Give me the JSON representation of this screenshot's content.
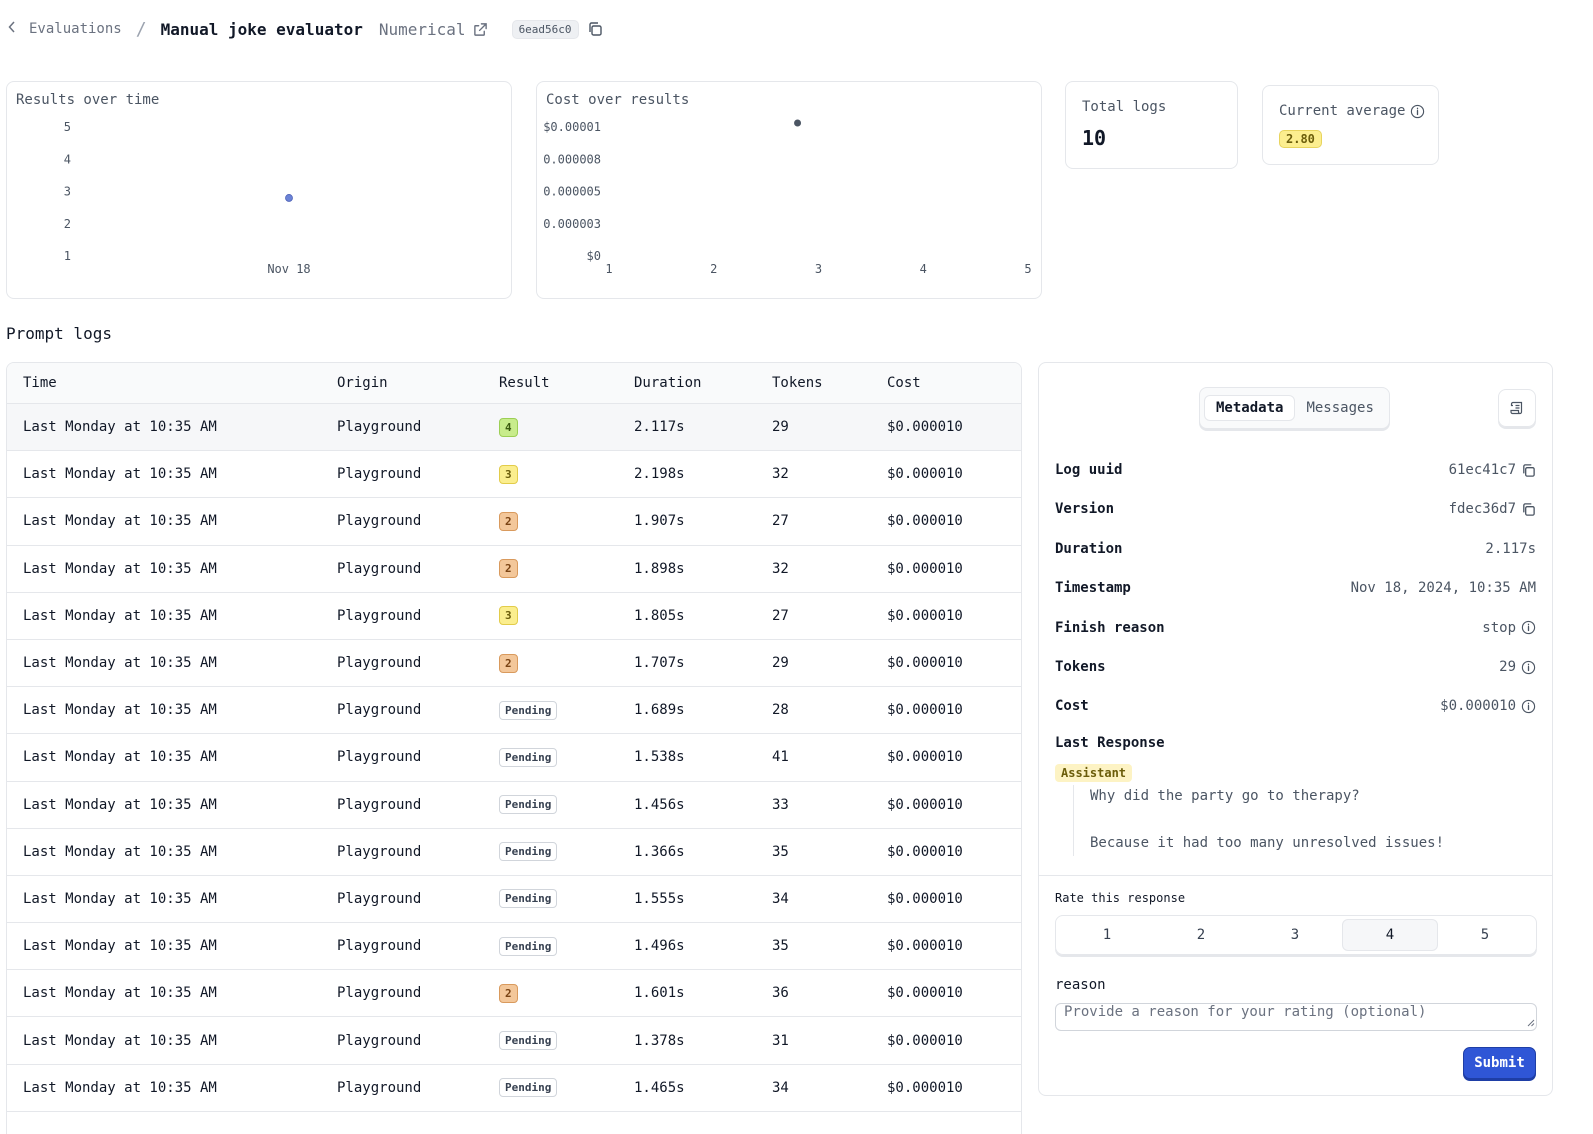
{
  "header": {
    "back_label": "Evaluations",
    "separator": "/",
    "title": "Manual joke evaluator",
    "type_label": "Numerical",
    "commit_hash": "6ead56c0"
  },
  "charts": {
    "results": {
      "title": "Results over time"
    },
    "cost": {
      "title": "Cost over results"
    }
  },
  "chart_data": [
    {
      "type": "scatter",
      "title": "Results over time",
      "y_ticks": [
        "1",
        "2",
        "3",
        "4",
        "5"
      ],
      "x_ticks": [
        "Nov 18"
      ],
      "ylim": [
        1,
        5
      ],
      "points": [
        {
          "x": "Nov 18",
          "y": 2.8
        }
      ],
      "color": "#6b83d6"
    },
    {
      "type": "scatter",
      "title": "Cost over results",
      "y_ticks": [
        "$0",
        "0.000003",
        "0.000005",
        "0.000008",
        "$0.00001"
      ],
      "y_tick_values": [
        0,
        2.5e-06,
        5e-06,
        7.5e-06,
        1e-05
      ],
      "x_ticks": [
        "1",
        "2",
        "3",
        "4",
        "5"
      ],
      "xlim": [
        1,
        5
      ],
      "ylim": [
        0,
        1e-05
      ],
      "points": [
        {
          "x": 2.8,
          "y": 1e-05
        }
      ],
      "color": "#4b5563"
    }
  ],
  "stats": {
    "total_logs_label": "Total logs",
    "total_logs_value": "10",
    "current_average_label": "Current average",
    "current_average_value": "2.80"
  },
  "section_title": "Prompt logs",
  "table": {
    "columns": [
      "Time",
      "Origin",
      "Result",
      "Duration",
      "Tokens",
      "Cost"
    ],
    "rows": [
      {
        "time": "Last Monday at 10:35 AM",
        "origin": "Playground",
        "result": "4",
        "duration": "2.117s",
        "tokens": "29",
        "cost": "$0.000010"
      },
      {
        "time": "Last Monday at 10:35 AM",
        "origin": "Playground",
        "result": "3",
        "duration": "2.198s",
        "tokens": "32",
        "cost": "$0.000010"
      },
      {
        "time": "Last Monday at 10:35 AM",
        "origin": "Playground",
        "result": "2",
        "duration": "1.907s",
        "tokens": "27",
        "cost": "$0.000010"
      },
      {
        "time": "Last Monday at 10:35 AM",
        "origin": "Playground",
        "result": "2",
        "duration": "1.898s",
        "tokens": "32",
        "cost": "$0.000010"
      },
      {
        "time": "Last Monday at 10:35 AM",
        "origin": "Playground",
        "result": "3",
        "duration": "1.805s",
        "tokens": "27",
        "cost": "$0.000010"
      },
      {
        "time": "Last Monday at 10:35 AM",
        "origin": "Playground",
        "result": "2",
        "duration": "1.707s",
        "tokens": "29",
        "cost": "$0.000010"
      },
      {
        "time": "Last Monday at 10:35 AM",
        "origin": "Playground",
        "result": "Pending",
        "duration": "1.689s",
        "tokens": "28",
        "cost": "$0.000010"
      },
      {
        "time": "Last Monday at 10:35 AM",
        "origin": "Playground",
        "result": "Pending",
        "duration": "1.538s",
        "tokens": "41",
        "cost": "$0.000010"
      },
      {
        "time": "Last Monday at 10:35 AM",
        "origin": "Playground",
        "result": "Pending",
        "duration": "1.456s",
        "tokens": "33",
        "cost": "$0.000010"
      },
      {
        "time": "Last Monday at 10:35 AM",
        "origin": "Playground",
        "result": "Pending",
        "duration": "1.366s",
        "tokens": "35",
        "cost": "$0.000010"
      },
      {
        "time": "Last Monday at 10:35 AM",
        "origin": "Playground",
        "result": "Pending",
        "duration": "1.555s",
        "tokens": "34",
        "cost": "$0.000010"
      },
      {
        "time": "Last Monday at 10:35 AM",
        "origin": "Playground",
        "result": "Pending",
        "duration": "1.496s",
        "tokens": "35",
        "cost": "$0.000010"
      },
      {
        "time": "Last Monday at 10:35 AM",
        "origin": "Playground",
        "result": "2",
        "duration": "1.601s",
        "tokens": "36",
        "cost": "$0.000010"
      },
      {
        "time": "Last Monday at 10:35 AM",
        "origin": "Playground",
        "result": "Pending",
        "duration": "1.378s",
        "tokens": "31",
        "cost": "$0.000010"
      },
      {
        "time": "Last Monday at 10:35 AM",
        "origin": "Playground",
        "result": "Pending",
        "duration": "1.465s",
        "tokens": "34",
        "cost": "$0.000010"
      }
    ]
  },
  "panel": {
    "tabs": [
      {
        "label": "Metadata",
        "active": true
      },
      {
        "label": "Messages",
        "active": false
      }
    ],
    "meta": [
      {
        "key": "Log uuid",
        "value": "61ec41c7",
        "icon": "copy-icon"
      },
      {
        "key": "Version",
        "value": "fdec36d7",
        "icon": "copy-icon"
      },
      {
        "key": "Duration",
        "value": "2.117s",
        "icon": ""
      },
      {
        "key": "Timestamp",
        "value": "Nov 18, 2024, 10:35 AM",
        "icon": ""
      },
      {
        "key": "Finish reason",
        "value": "stop",
        "icon": "info-icon"
      },
      {
        "key": "Tokens",
        "value": "29",
        "icon": "info-icon"
      },
      {
        "key": "Cost",
        "value": "$0.000010",
        "icon": "info-icon"
      }
    ],
    "last_response_label": "Last Response",
    "role_label": "Assistant",
    "message_lines": [
      "Why did the party go to therapy?",
      "Because it had too many unresolved issues!"
    ],
    "rate_label": "Rate this response",
    "rate_options": [
      "1",
      "2",
      "3",
      "4",
      "5"
    ],
    "rate_selected": "4",
    "reason_label": "reason",
    "reason_placeholder": "Provide a reason for your rating (optional)",
    "submit_label": "Submit"
  },
  "colors": {
    "accent": "#2f56d6",
    "badge_4": "#c8ec8c",
    "badge_3": "#fbee8e",
    "badge_2": "#f3c79a"
  }
}
